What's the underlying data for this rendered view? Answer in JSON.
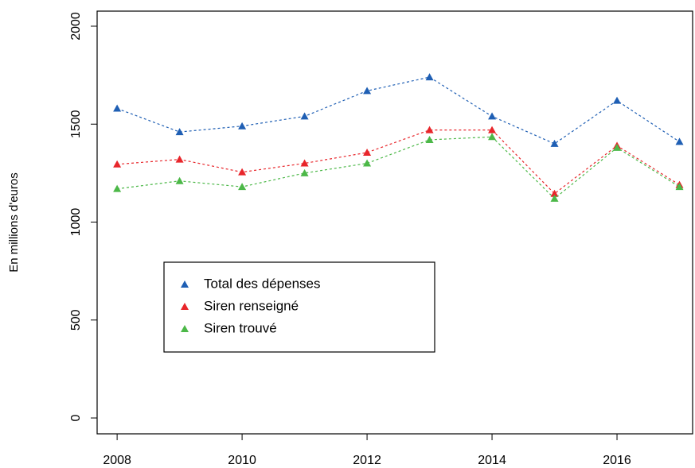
{
  "chart_data": {
    "type": "line",
    "y_label": "En millions d'euros",
    "x": [
      2008,
      2009,
      2010,
      2011,
      2012,
      2013,
      2014,
      2015,
      2016,
      2017
    ],
    "series": [
      {
        "name": "Total des dépenses",
        "color": "#1f5fb4",
        "values": [
          1580,
          1460,
          1490,
          1540,
          1670,
          1740,
          1540,
          1400,
          1620,
          1410
        ]
      },
      {
        "name": "Siren renseigné",
        "color": "#e8262b",
        "values": [
          1295,
          1320,
          1255,
          1300,
          1355,
          1470,
          1470,
          1145,
          1390,
          1190
        ]
      },
      {
        "name": "Siren trouvé",
        "color": "#4cb848",
        "values": [
          1170,
          1210,
          1180,
          1250,
          1300,
          1420,
          1435,
          1120,
          1380,
          1180
        ]
      }
    ],
    "xlim": [
      2007.68,
      2017.21
    ],
    "xticks": [
      2008,
      2010,
      2012,
      2014,
      2016
    ],
    "ylim": [
      -81,
      2077
    ],
    "yticks": [
      0,
      500,
      1000,
      1500,
      2000
    ],
    "grid": false,
    "marker": "triangle",
    "line_style": "dashed"
  }
}
